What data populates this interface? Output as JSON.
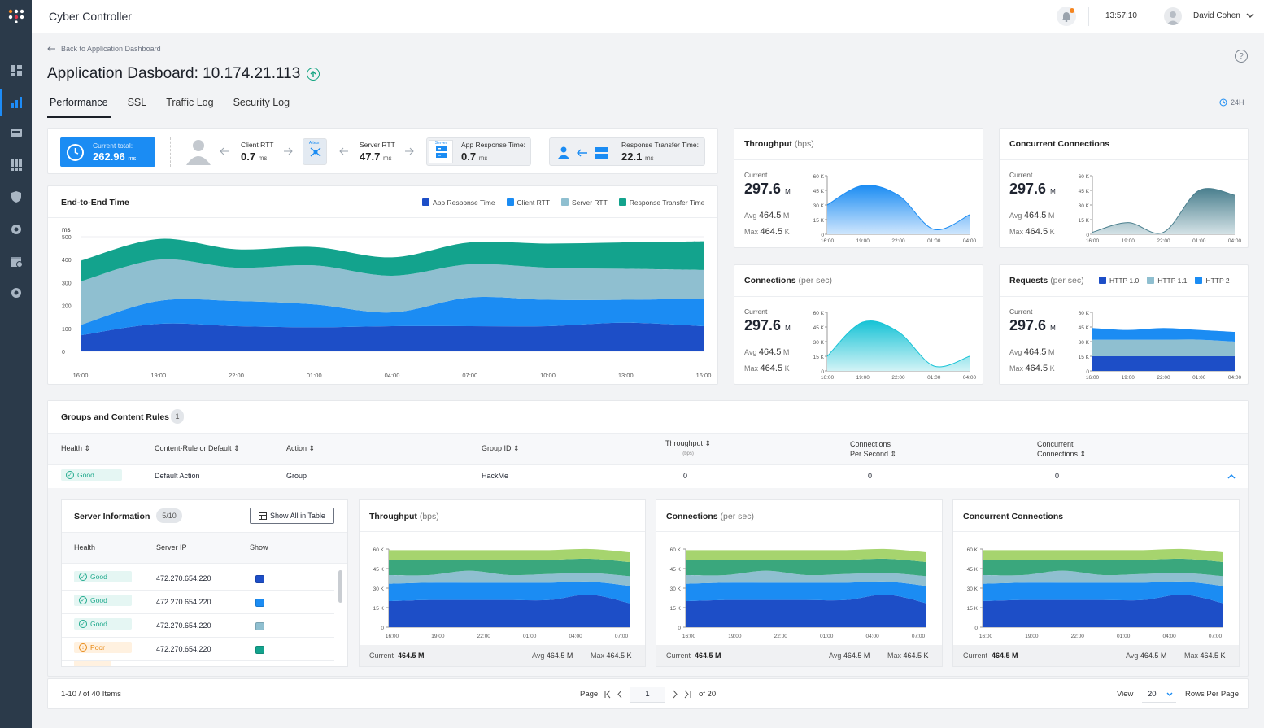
{
  "app": {
    "title": "Cyber Controller"
  },
  "topbar": {
    "time": "13:57:10",
    "user": "David Cohen"
  },
  "nav": {
    "back_label": "Back to Application Dashboard"
  },
  "page": {
    "title": "Application Dasboard: 10.174.21.113",
    "range": "24H"
  },
  "tabs": [
    "Performance",
    "SSL",
    "Traffic Log",
    "Security Log"
  ],
  "summary": {
    "current_total_label": "Current total:",
    "current_total_value": "262.96",
    "current_total_unit": "ms",
    "client_rtt_label": "Client RTT",
    "client_rtt_value": "0.7",
    "client_rtt_unit": "ms",
    "alteon_label": "Alteon",
    "server_rtt_label": "Server RTT",
    "server_rtt_value": "47.7",
    "server_rtt_unit": "ms",
    "server_label": "Server",
    "app_resp_label": "App Response Time:",
    "app_resp_value": "0.7",
    "app_resp_unit": "ms",
    "resp_transfer_label": "Response Transfer Time:",
    "resp_transfer_value": "22.1",
    "resp_transfer_unit": "ms"
  },
  "e2e": {
    "title": "End-to-End Time",
    "legend": [
      "App Response Time",
      "Client RTT",
      "Server RTT",
      "Response Transfer Time"
    ]
  },
  "small_cards": {
    "throughput": {
      "title": "Throughput",
      "unit": "(bps)"
    },
    "concurrent": {
      "title": "Concurrent Connections"
    },
    "connections": {
      "title": "Connections",
      "unit": "(per sec)"
    },
    "requests": {
      "title": "Requests",
      "unit": "(per sec)",
      "legend": [
        "HTTP 1.0",
        "HTTP 1.1",
        "HTTP 2"
      ]
    },
    "current_label": "Current",
    "current_value": "297.6",
    "current_unit": "M",
    "avg_label": "Avg",
    "avg_value": "464.5",
    "avg_unit": "M",
    "max_label": "Max",
    "max_value": "464.5",
    "max_unit": "K"
  },
  "groups": {
    "title": "Groups and Content Rules",
    "count": "1",
    "columns": [
      "Health",
      "Content-Rule or Default",
      "Action",
      "Group ID",
      "Throughput",
      "(bps)",
      "Connections",
      "Per Second",
      "Concurrent",
      "Connections"
    ],
    "row": {
      "health": "Good",
      "rule": "Default Action",
      "action": "Group",
      "group_id": "HackMe",
      "throughput": "0",
      "cps": "0",
      "concurrent": "0"
    }
  },
  "server_info": {
    "title": "Server Information",
    "count": "5/10",
    "show_all": "Show All in Table",
    "columns": [
      "Health",
      "Server IP",
      "Show"
    ],
    "rows": [
      {
        "health": "Good",
        "ip": "472.270.654.220",
        "color": "#1d4ec7"
      },
      {
        "health": "Good",
        "ip": "472.270.654.220",
        "color": "#1b8cf3"
      },
      {
        "health": "Good",
        "ip": "472.270.654.220",
        "color": "#8fbfd0"
      },
      {
        "health": "Poor",
        "ip": "472.270.654.220",
        "color": "#13a38d"
      }
    ]
  },
  "bottom_cards": [
    {
      "title": "Throughput",
      "unit": "(bps)"
    },
    {
      "title": "Connections",
      "unit": "(per sec)"
    },
    {
      "title": "Concurrent Connections",
      "unit": ""
    }
  ],
  "bottom_stats": {
    "current_label": "Current",
    "current_value": "464.5 M",
    "avg_label": "Avg",
    "avg_value": "464.5 M",
    "max_label": "Max",
    "max_value": "464.5 K"
  },
  "pagination": {
    "range_label": "1-10 / of 40 Items",
    "page_label": "Page",
    "page_value": "1",
    "of_label": "of 20",
    "view_label": "View",
    "view_value": "20",
    "rpp_label": "Rows Per Page"
  },
  "colors": {
    "accent": "#1b8cf3",
    "dark_blue": "#1d4ec7",
    "teal": "#13a38d",
    "light_teal": "#8fbfd0",
    "sidebar": "#2b3a4a"
  },
  "chart_data": [
    {
      "type": "area",
      "title": "End-to-End Time",
      "ylabel": "ms",
      "ylim": [
        0,
        500
      ],
      "categories": [
        "16:00",
        "19:00",
        "22:00",
        "01:00",
        "04:00",
        "07:00",
        "10:00",
        "13:00",
        "16:00"
      ],
      "series": [
        {
          "name": "App Response Time",
          "values": [
            70,
            120,
            110,
            105,
            110,
            110,
            110,
            125,
            110
          ]
        },
        {
          "name": "Client RTT",
          "values": [
            45,
            100,
            110,
            100,
            60,
            125,
            115,
            100,
            120
          ]
        },
        {
          "name": "Server RTT",
          "values": [
            190,
            180,
            145,
            170,
            160,
            145,
            140,
            135,
            125
          ]
        },
        {
          "name": "Response Transfer Time",
          "values": [
            90,
            90,
            80,
            80,
            80,
            95,
            105,
            115,
            125
          ]
        }
      ]
    },
    {
      "type": "area",
      "title": "Throughput",
      "ylim": [
        0,
        60
      ],
      "yticks": [
        "0",
        "15 K",
        "30 K",
        "45 K",
        "60 K"
      ],
      "categories": [
        "16:00",
        "19:00",
        "22:00",
        "01:00",
        "04:00"
      ],
      "values": [
        30,
        50,
        40,
        5,
        20
      ]
    },
    {
      "type": "area",
      "title": "Concurrent Connections",
      "ylim": [
        0,
        60
      ],
      "yticks": [
        "0",
        "15 K",
        "30 K",
        "45 K",
        "60 K"
      ],
      "categories": [
        "16:00",
        "19:00",
        "22:00",
        "01:00",
        "04:00"
      ],
      "values": [
        2,
        12,
        2,
        45,
        40
      ]
    },
    {
      "type": "area",
      "title": "Connections",
      "ylim": [
        0,
        60
      ],
      "yticks": [
        "0",
        "15 K",
        "30 K",
        "45 K",
        "60 K"
      ],
      "categories": [
        "16:00",
        "19:00",
        "22:00",
        "01:00",
        "04:00"
      ],
      "values": [
        15,
        50,
        40,
        5,
        15
      ]
    },
    {
      "type": "area",
      "title": "Requests",
      "ylim": [
        0,
        60
      ],
      "yticks": [
        "0",
        "15 K",
        "30 K",
        "45 K",
        "60 K"
      ],
      "categories": [
        "16:00",
        "19:00",
        "22:00",
        "01:00",
        "04:00"
      ],
      "series": [
        {
          "name": "HTTP 1.0",
          "values": [
            15,
            15,
            15,
            15,
            15
          ]
        },
        {
          "name": "HTTP 1.1",
          "values": [
            17,
            17,
            17,
            17,
            15
          ]
        },
        {
          "name": "HTTP 2",
          "values": [
            12,
            10,
            12,
            10,
            10
          ]
        }
      ]
    }
  ]
}
